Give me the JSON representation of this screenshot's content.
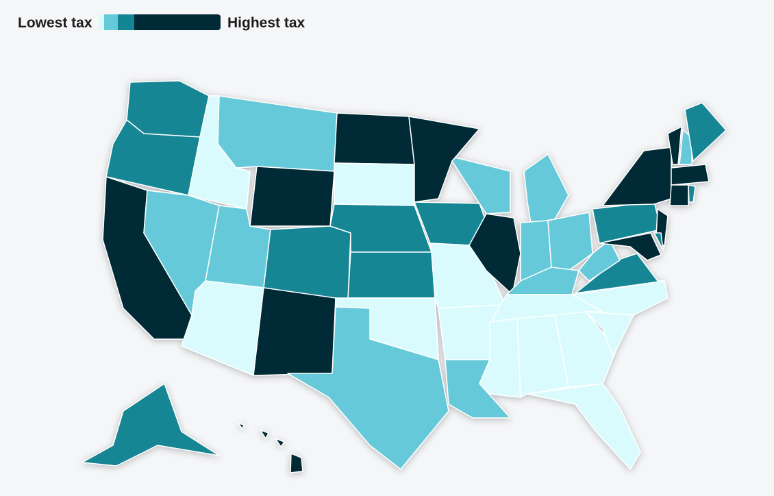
{
  "legend": {
    "low_label": "Lowest tax",
    "high_label": "Highest tax",
    "colors": [
      "#d9fbfd",
      "#66c9d9",
      "#138594",
      "#002a35"
    ]
  }
}
